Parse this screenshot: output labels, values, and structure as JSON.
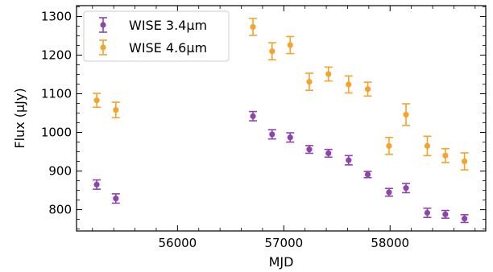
{
  "chart_data": {
    "type": "scatter",
    "xlabel": "MJD",
    "ylabel": "Flux (μJy)",
    "xlim": [
      55050,
      58900
    ],
    "ylim": [
      745,
      1328
    ],
    "xticks": [
      {
        "value": 56000,
        "label": "56000"
      },
      {
        "value": 57000,
        "label": "57000"
      },
      {
        "value": 58000,
        "label": "58000"
      }
    ],
    "yticks": [
      {
        "value": 800,
        "label": "800"
      },
      {
        "value": 900,
        "label": "900"
      },
      {
        "value": 1000,
        "label": "1000"
      },
      {
        "value": 1100,
        "label": "1100"
      },
      {
        "value": 1200,
        "label": "1200"
      },
      {
        "value": 1300,
        "label": "1300"
      }
    ],
    "grid": false,
    "legend_position": "top-left",
    "series": [
      {
        "name": "WISE 3.4μm",
        "color": "#8e44ad",
        "points": [
          {
            "x": 55240,
            "y": 865,
            "err": 12
          },
          {
            "x": 55420,
            "y": 829,
            "err": 12
          },
          {
            "x": 56710,
            "y": 1042,
            "err": 12
          },
          {
            "x": 56890,
            "y": 995,
            "err": 12
          },
          {
            "x": 57060,
            "y": 987,
            "err": 12
          },
          {
            "x": 57240,
            "y": 956,
            "err": 10
          },
          {
            "x": 57420,
            "y": 946,
            "err": 10
          },
          {
            "x": 57610,
            "y": 928,
            "err": 12
          },
          {
            "x": 57790,
            "y": 891,
            "err": 8
          },
          {
            "x": 57990,
            "y": 845,
            "err": 10
          },
          {
            "x": 58150,
            "y": 856,
            "err": 12
          },
          {
            "x": 58350,
            "y": 792,
            "err": 12
          },
          {
            "x": 58520,
            "y": 788,
            "err": 10
          },
          {
            "x": 58700,
            "y": 777,
            "err": 10
          }
        ]
      },
      {
        "name": "WISE 4.6μm",
        "color": "#f5a32b",
        "points": [
          {
            "x": 55240,
            "y": 1083,
            "err": 18
          },
          {
            "x": 55420,
            "y": 1058,
            "err": 20
          },
          {
            "x": 56710,
            "y": 1273,
            "err": 22
          },
          {
            "x": 56890,
            "y": 1210,
            "err": 22
          },
          {
            "x": 57060,
            "y": 1226,
            "err": 22
          },
          {
            "x": 57240,
            "y": 1131,
            "err": 22
          },
          {
            "x": 57420,
            "y": 1151,
            "err": 18
          },
          {
            "x": 57610,
            "y": 1124,
            "err": 22
          },
          {
            "x": 57790,
            "y": 1112,
            "err": 18
          },
          {
            "x": 57990,
            "y": 965,
            "err": 22
          },
          {
            "x": 58150,
            "y": 1046,
            "err": 28
          },
          {
            "x": 58350,
            "y": 965,
            "err": 25
          },
          {
            "x": 58520,
            "y": 940,
            "err": 18
          },
          {
            "x": 58700,
            "y": 925,
            "err": 22
          }
        ]
      }
    ]
  }
}
